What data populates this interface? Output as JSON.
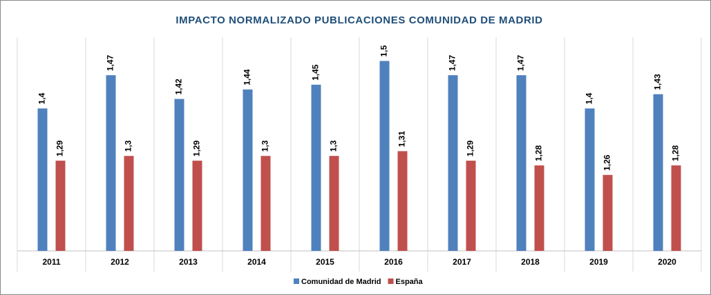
{
  "chart_data": {
    "type": "bar",
    "title": "IMPACTO NORMALIZADO PUBLICACIONES COMUNIDAD DE MADRID",
    "categories": [
      "2011",
      "2012",
      "2013",
      "2014",
      "2015",
      "2016",
      "2017",
      "2018",
      "2019",
      "2020"
    ],
    "series": [
      {
        "name": "Comunidad de Madrid",
        "color": "#4f81bd",
        "values": [
          1.4,
          1.47,
          1.42,
          1.44,
          1.45,
          1.5,
          1.47,
          1.47,
          1.4,
          1.43
        ],
        "value_labels": [
          "1,4",
          "1,47",
          "1,42",
          "1,44",
          "1,45",
          "1,5",
          "1,47",
          "1,47",
          "1,4",
          "1,43"
        ]
      },
      {
        "name": "España",
        "color": "#c0504d",
        "values": [
          1.29,
          1.3,
          1.29,
          1.3,
          1.3,
          1.31,
          1.29,
          1.28,
          1.26,
          1.28
        ],
        "value_labels": [
          "1,29",
          "1,3",
          "1,29",
          "1,3",
          "1,3",
          "1,31",
          "1,29",
          "1,28",
          "1,26",
          "1,28"
        ]
      }
    ],
    "ylim": [
      1.1,
      1.55
    ],
    "legend": "bottom"
  }
}
